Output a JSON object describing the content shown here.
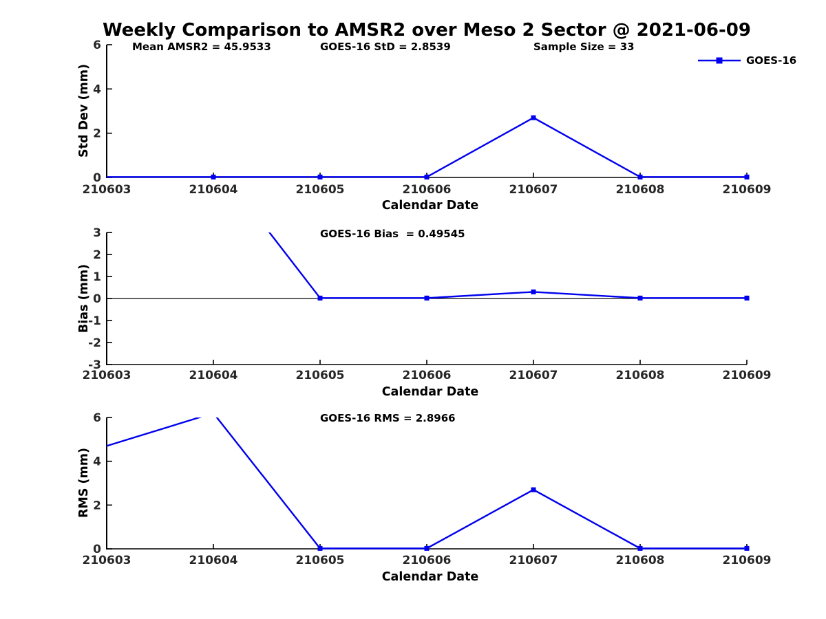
{
  "colors": {
    "series_blue": "#0000EE",
    "axis": "#000000",
    "tick_label": "#262626"
  },
  "chart_data": [
    {
      "type": "line",
      "title": "Weekly Comparison to AMSR2 over Meso 2 Sector @ 2021-06-09",
      "ylabel": "Std Dev (mm)",
      "xlabel": "Calendar Date",
      "annotations": [
        "Mean AMSR2 = 45.9533",
        "GOES-16 StD = 2.8539",
        "Sample Size = 33"
      ],
      "legend": {
        "label": "GOES-16",
        "position": "top-right",
        "marker": "square"
      },
      "ylim": [
        0,
        6
      ],
      "yticks": [
        0,
        2,
        4,
        6
      ],
      "grid": false,
      "x_categories": [
        "210603",
        "210604",
        "210605",
        "210606",
        "210607",
        "210608",
        "210609"
      ],
      "series": [
        {
          "name": "GOES-16",
          "color": "#0000EE",
          "marker": "square",
          "points": [
            {
              "x": "210603",
              "y": 0.02,
              "marker": false
            },
            {
              "x": "210604",
              "y": 0.02,
              "marker": true
            },
            {
              "x": "210605",
              "y": 0.02,
              "marker": true
            },
            {
              "x": "210606",
              "y": 0.02,
              "marker": true
            },
            {
              "x": "210607",
              "y": 2.7,
              "marker": true
            },
            {
              "x": "210608",
              "y": 0.02,
              "marker": true
            },
            {
              "x": "210609",
              "y": 0.02,
              "marker": true
            }
          ]
        }
      ]
    },
    {
      "type": "line",
      "ylabel": "Bias (mm)",
      "xlabel": "Calendar Date",
      "annotation": "GOES-16 Bias  = 0.49545",
      "ylim": [
        -3,
        3
      ],
      "yticks": [
        -3,
        -2,
        -1,
        0,
        1,
        2,
        3
      ],
      "zero_line": true,
      "grid": false,
      "x_categories": [
        "210603",
        "210604",
        "210605",
        "210606",
        "210607",
        "210608",
        "210609"
      ],
      "series": [
        {
          "name": "GOES-16",
          "color": "#0000EE",
          "marker": "square",
          "points": [
            {
              "x": "210603",
              "y": 4.6,
              "marker": false,
              "offscale": true
            },
            {
              "x": "210604",
              "y": 6.3,
              "marker": false,
              "offscale": true
            },
            {
              "x": "210605",
              "y": 0.02,
              "marker": true
            },
            {
              "x": "210606",
              "y": 0.02,
              "marker": true
            },
            {
              "x": "210607",
              "y": 0.3,
              "marker": true
            },
            {
              "x": "210608",
              "y": 0.02,
              "marker": true
            },
            {
              "x": "210609",
              "y": 0.02,
              "marker": true
            }
          ]
        }
      ]
    },
    {
      "type": "line",
      "ylabel": "RMS (mm)",
      "xlabel": "Calendar Date",
      "annotation": "GOES-16 RMS = 2.8966",
      "ylim": [
        0,
        6
      ],
      "yticks": [
        0,
        2,
        4,
        6
      ],
      "grid": false,
      "x_categories": [
        "210603",
        "210604",
        "210605",
        "210606",
        "210607",
        "210608",
        "210609"
      ],
      "series": [
        {
          "name": "GOES-16",
          "color": "#0000EE",
          "marker": "square",
          "points": [
            {
              "x": "210603",
              "y": 4.7,
              "marker": false
            },
            {
              "x": "210604",
              "y": 6.2,
              "marker": false,
              "offscale": true
            },
            {
              "x": "210605",
              "y": 0.02,
              "marker": true
            },
            {
              "x": "210606",
              "y": 0.02,
              "marker": true
            },
            {
              "x": "210607",
              "y": 2.7,
              "marker": true
            },
            {
              "x": "210608",
              "y": 0.02,
              "marker": true
            },
            {
              "x": "210609",
              "y": 0.02,
              "marker": true
            }
          ]
        }
      ]
    }
  ]
}
